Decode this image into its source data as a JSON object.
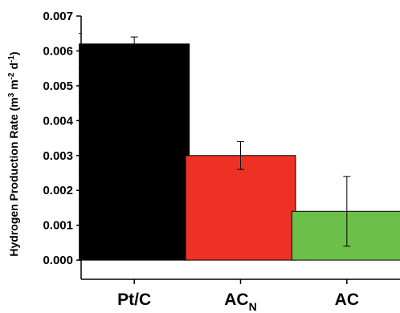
{
  "chart_data": {
    "type": "bar",
    "categories": [
      "Pt/C",
      "AC_N",
      "AC"
    ],
    "category_labels": [
      {
        "main": "Pt/C",
        "sub": ""
      },
      {
        "main": "AC",
        "sub": "N"
      },
      {
        "main": "AC",
        "sub": ""
      }
    ],
    "values": [
      0.0062,
      0.003,
      0.0014
    ],
    "errors": [
      0.0002,
      0.0004,
      0.001
    ],
    "colors": [
      "#000000",
      "#ee3124",
      "#6cc04a"
    ],
    "ylabel_parts": [
      {
        "text": "Hydrogen Production Rate (m",
        "sup": ""
      },
      {
        "text": "",
        "sup": "3"
      },
      {
        "text": " m",
        "sup": ""
      },
      {
        "text": "",
        "sup": "-2"
      },
      {
        "text": " d",
        "sup": ""
      },
      {
        "text": "",
        "sup": "-1"
      },
      {
        "text": ")",
        "sup": ""
      }
    ],
    "ylim": [
      -0.00055,
      0.007
    ],
    "yticks": [
      0.0,
      0.001,
      0.002,
      0.003,
      0.004,
      0.005,
      0.006,
      0.007
    ],
    "ytick_labels": [
      "0.000",
      "0.001",
      "0.002",
      "0.003",
      "0.004",
      "0.005",
      "0.006",
      "0.007"
    ],
    "grid": false,
    "legend": "none"
  }
}
